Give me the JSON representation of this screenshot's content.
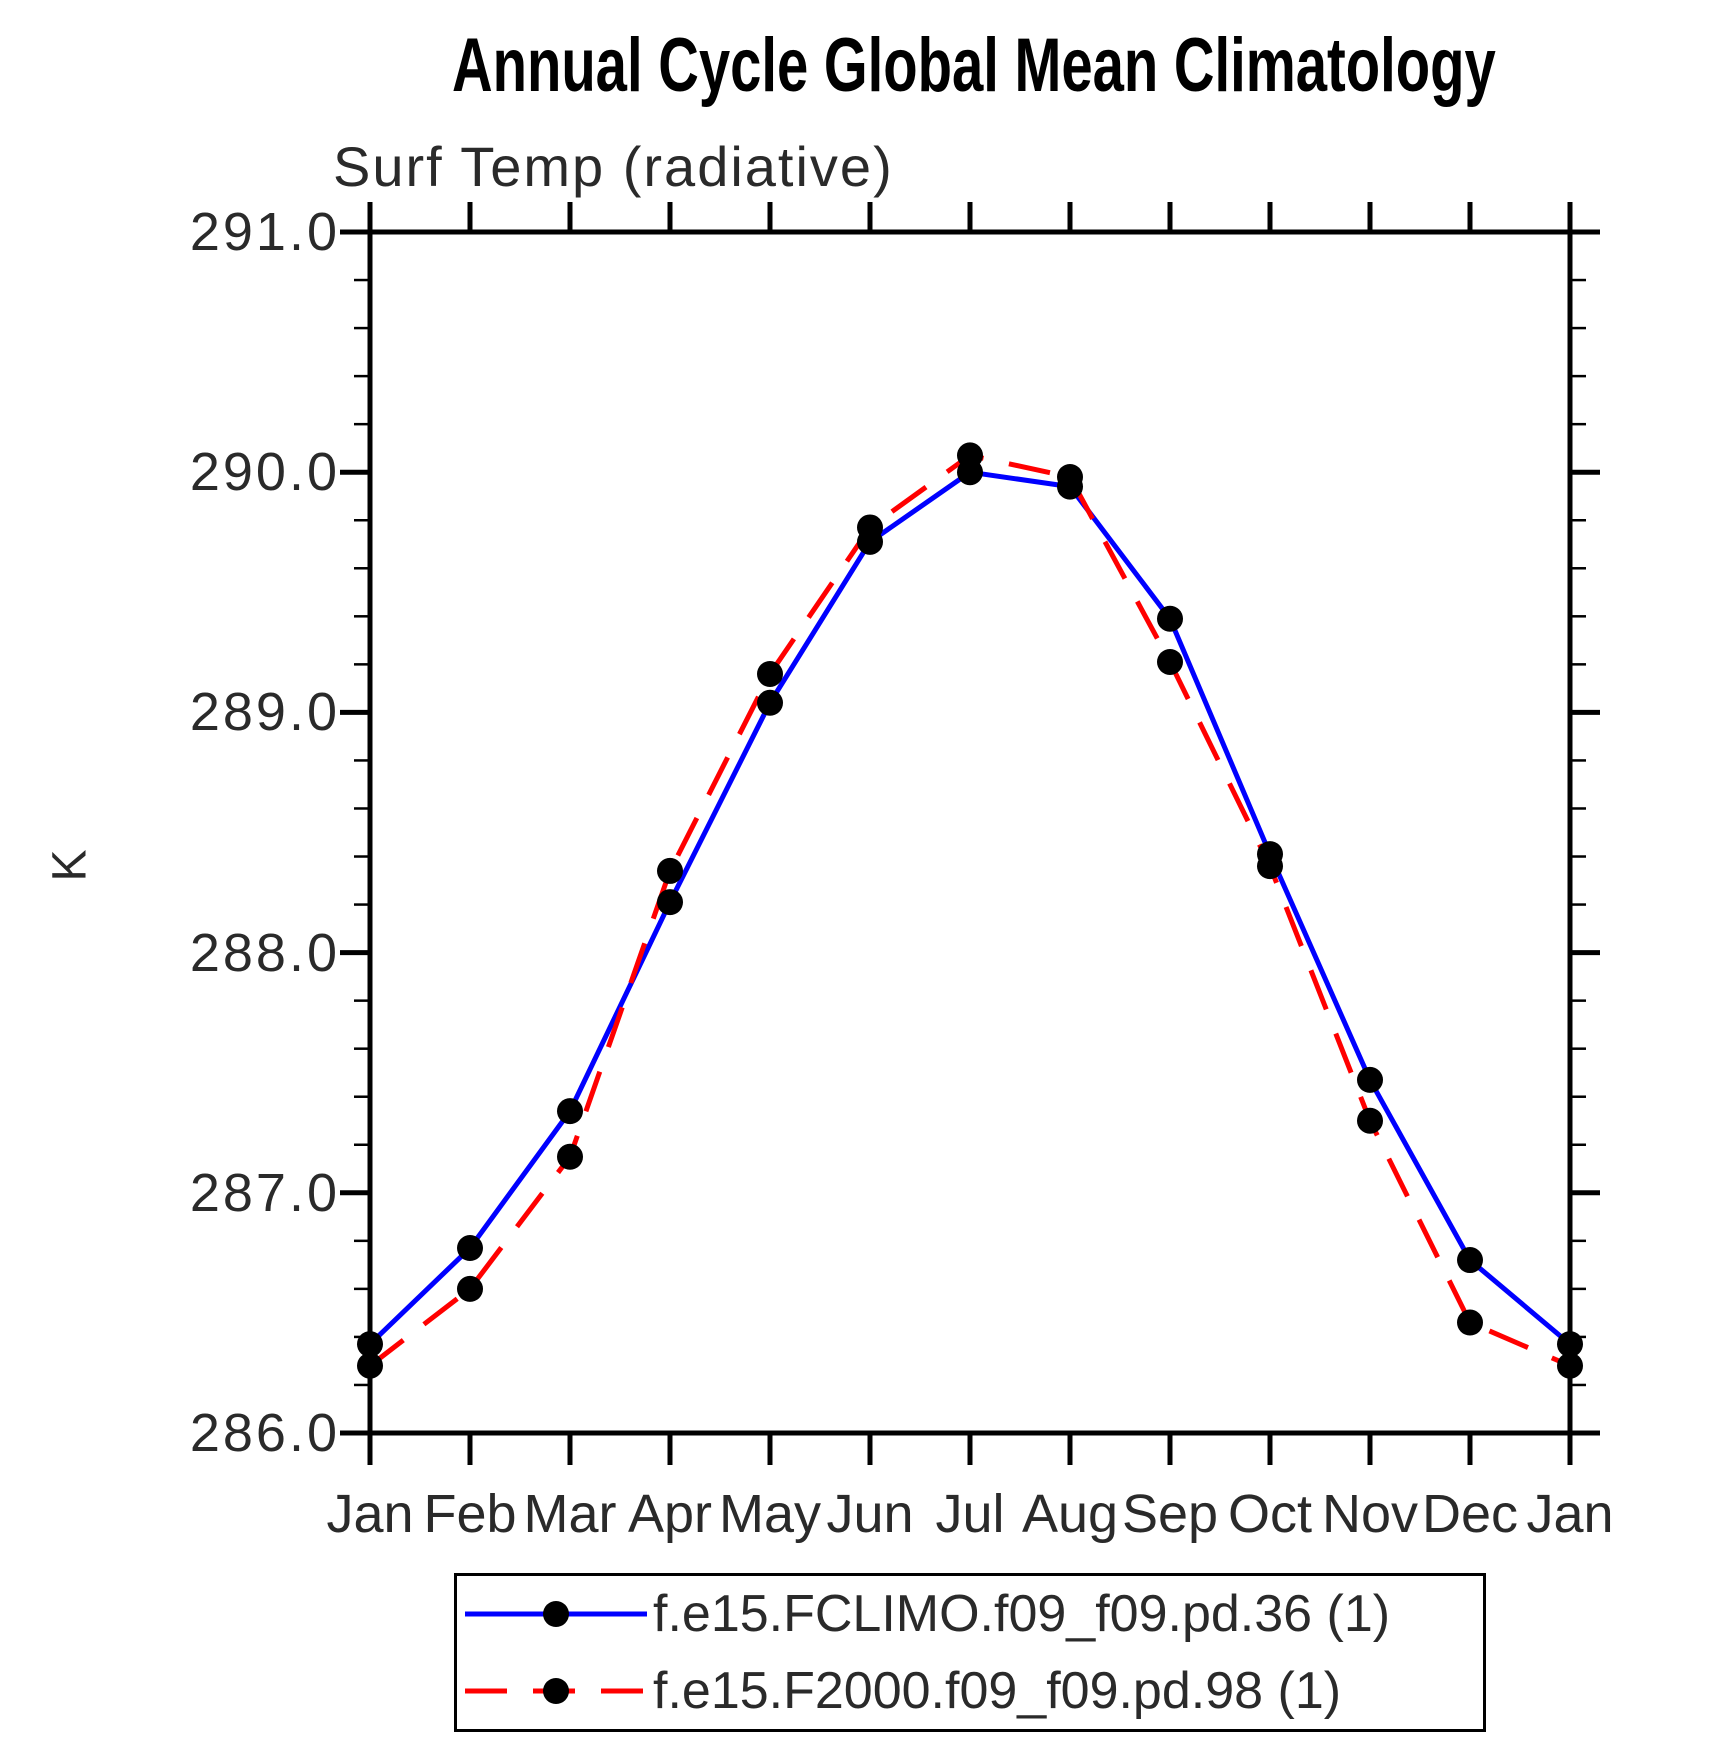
{
  "header": {
    "title": "Annual Cycle Global Mean Climatology"
  },
  "chart_data": {
    "type": "line",
    "title": "Surf Temp (radiative)",
    "xlabel": "",
    "ylabel": "K",
    "ylim": [
      286.0,
      291.0
    ],
    "yticks": [
      286.0,
      287.0,
      288.0,
      289.0,
      290.0,
      291.0
    ],
    "ytick_labels": [
      "286.0",
      "287.0",
      "288.0",
      "289.0",
      "290.0",
      "291.0"
    ],
    "yminor_step": 0.2,
    "categories": [
      "Jan",
      "Feb",
      "Mar",
      "Apr",
      "May",
      "Jun",
      "Jul",
      "Aug",
      "Sep",
      "Oct",
      "Nov",
      "Dec",
      "Jan"
    ],
    "grid": false,
    "legend_position": "bottom",
    "axis_color": "#000000",
    "marker": {
      "shape": "circle",
      "color": "#000000",
      "radius_px": 13
    },
    "series": [
      {
        "name": "f.e15.FCLIMO.f09_f09.pd.36 (1)",
        "color": "#0000ff",
        "style": "solid",
        "values": [
          286.37,
          286.77,
          287.34,
          288.21,
          289.04,
          289.71,
          290.0,
          289.94,
          289.39,
          288.41,
          287.47,
          286.72,
          286.37
        ]
      },
      {
        "name": "f.e15.F2000.f09_f09.pd.98 (1)",
        "color": "#ff0000",
        "style": "dashed",
        "values": [
          286.28,
          286.6,
          287.15,
          288.34,
          289.16,
          289.77,
          290.07,
          289.98,
          289.21,
          288.36,
          287.3,
          286.46,
          286.28
        ]
      }
    ]
  }
}
